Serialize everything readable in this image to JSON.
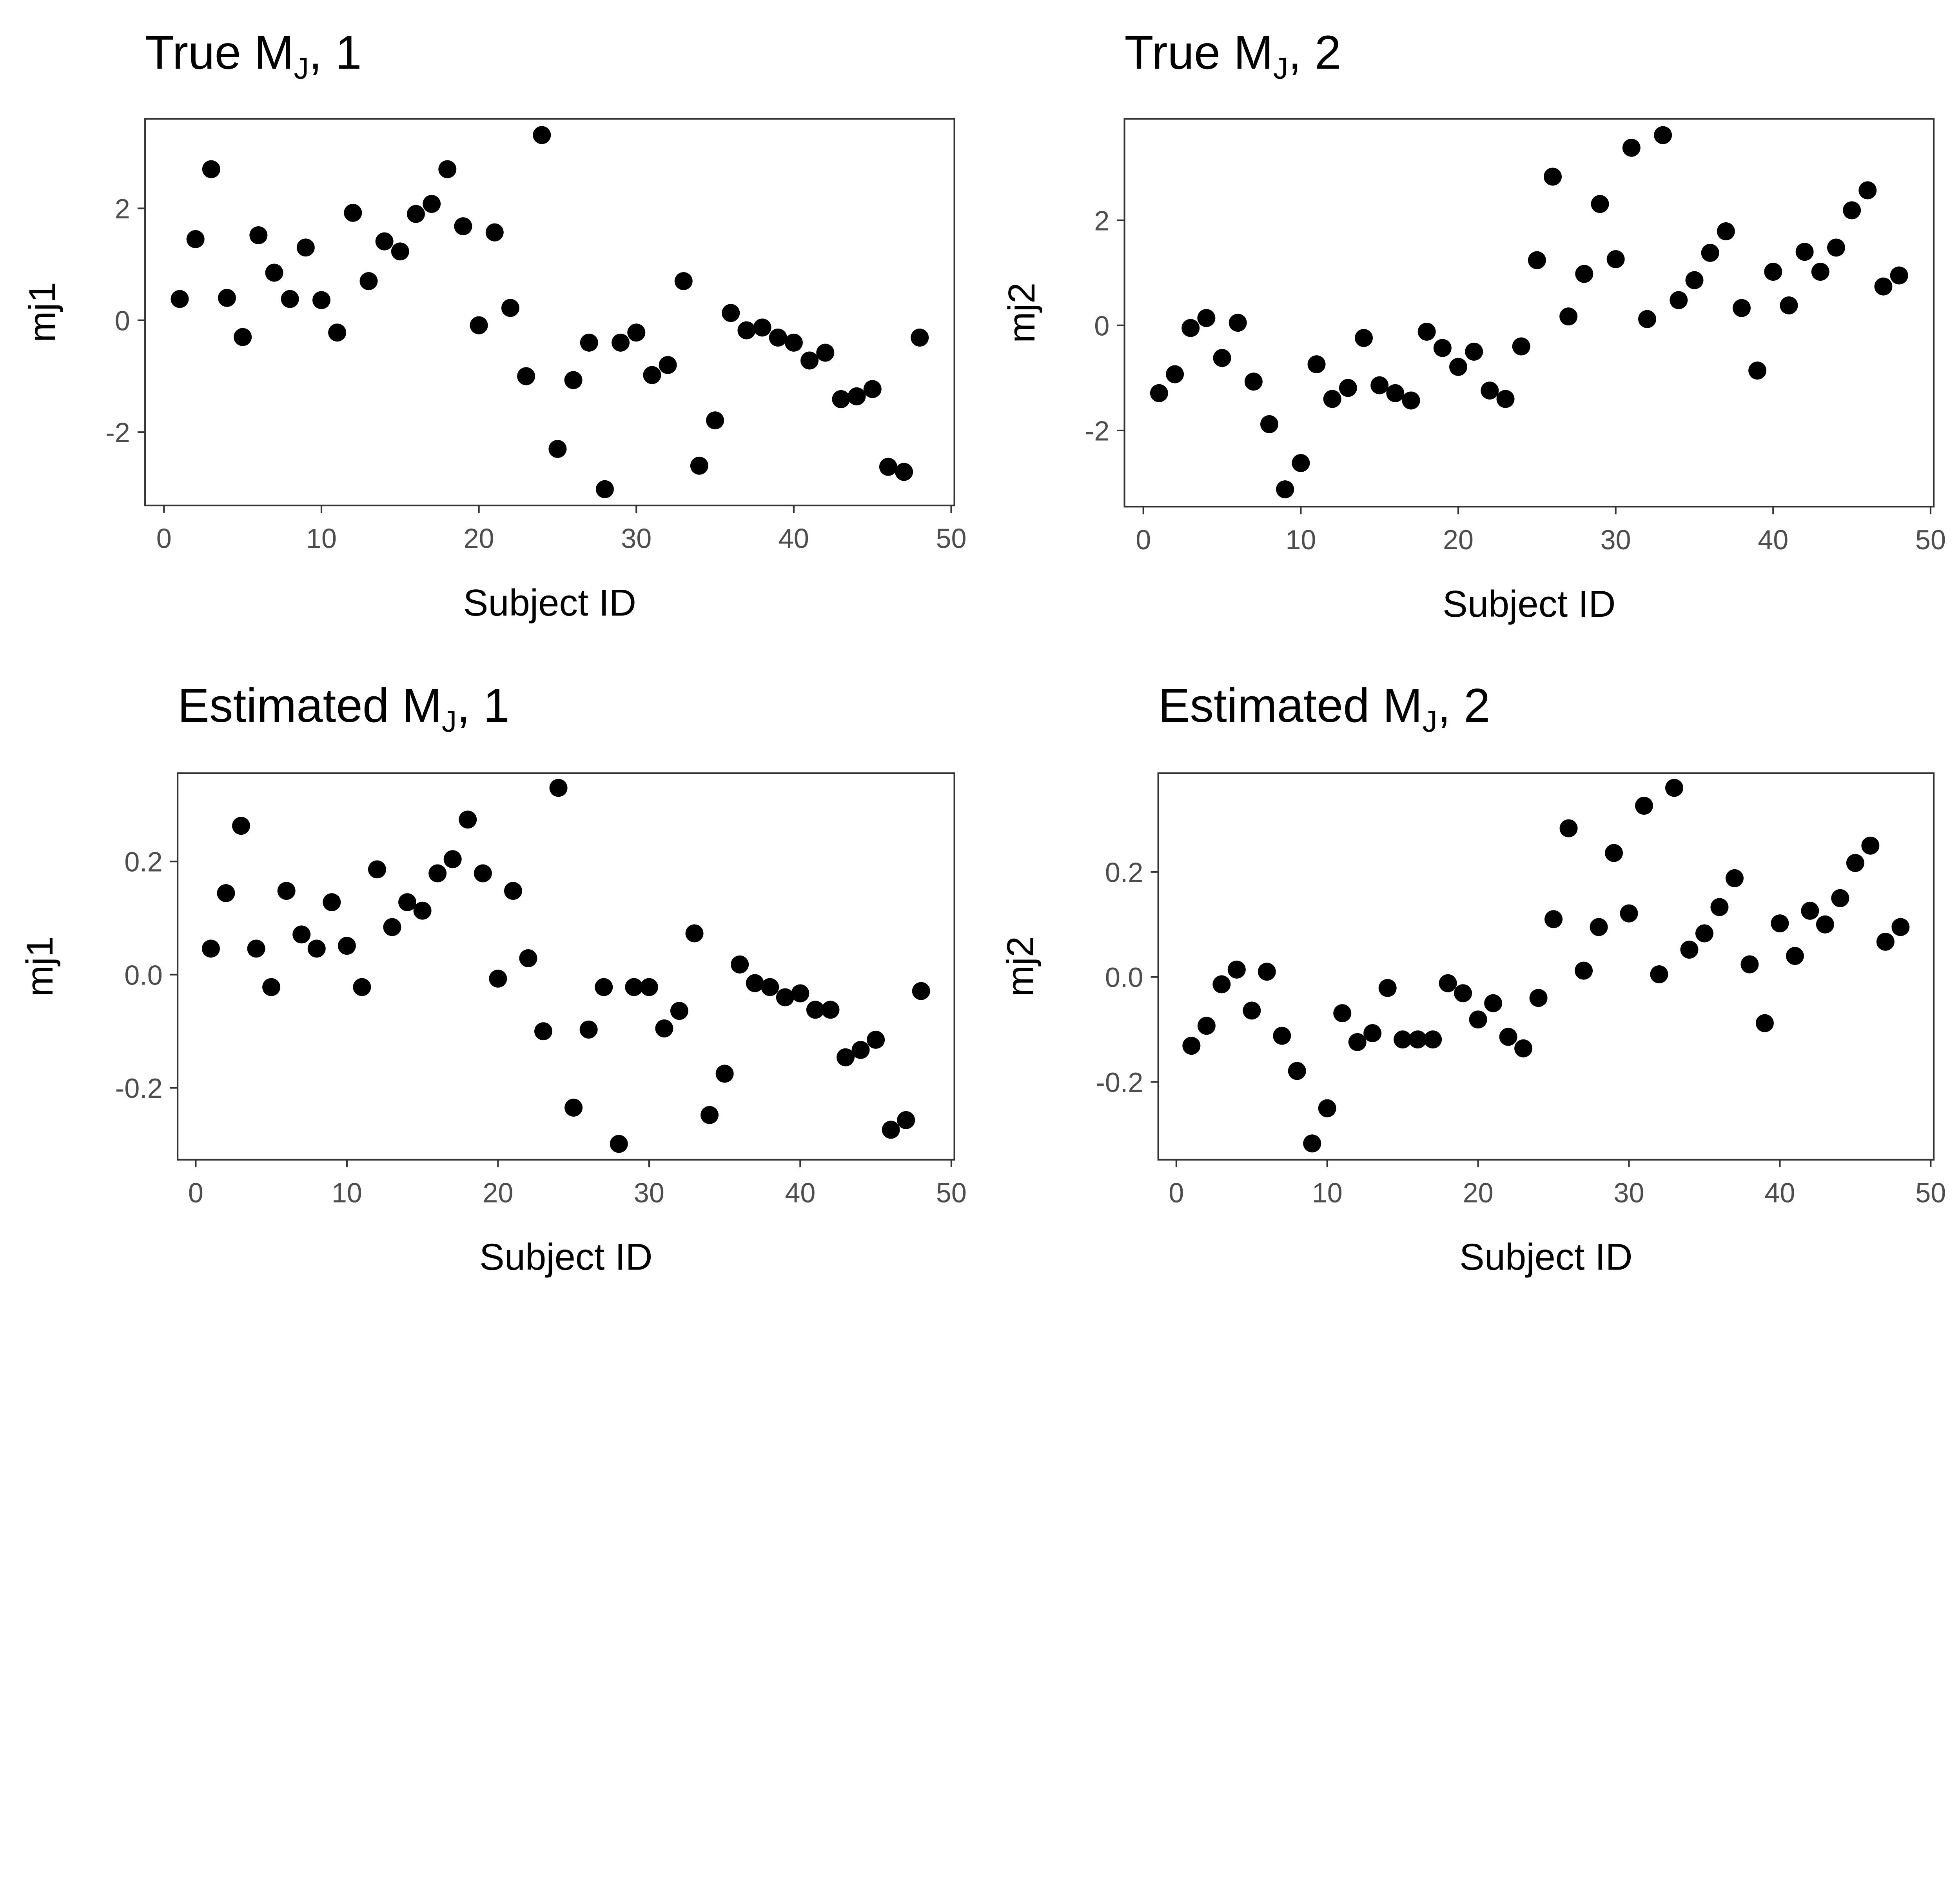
{
  "chart_data": [
    {
      "type": "scatter",
      "title": {
        "main": "True M",
        "sub": "J",
        "suffix": ", 1"
      },
      "xlabel": "Subject ID",
      "ylabel": "mj1",
      "xlim": [
        -1.2,
        50.2
      ],
      "ylim": [
        -3.31,
        3.6
      ],
      "xticks": [
        0,
        10,
        20,
        30,
        40,
        50
      ],
      "xtick_labels": [
        "0",
        "10",
        "20",
        "30",
        "40",
        "50"
      ],
      "yticks": [
        -2,
        0,
        2
      ],
      "ytick_labels": [
        "-2",
        "0",
        "2"
      ],
      "x": [
        1,
        2,
        3,
        4,
        5,
        6,
        7,
        8,
        9,
        10,
        11,
        12,
        13,
        14,
        15,
        16,
        17,
        18,
        19,
        20,
        21,
        22,
        23,
        24,
        25,
        26,
        27,
        28,
        29,
        30,
        31,
        32,
        33,
        34,
        35,
        36,
        37,
        38,
        39,
        40,
        41,
        42,
        43,
        44,
        45,
        46,
        47,
        48
      ],
      "y": [
        0.38,
        1.45,
        2.7,
        0.4,
        -0.3,
        1.52,
        0.85,
        0.38,
        1.3,
        0.36,
        -0.22,
        1.92,
        0.7,
        1.41,
        1.23,
        1.9,
        2.08,
        2.7,
        1.68,
        -0.09,
        1.57,
        0.22,
        -1.0,
        3.31,
        -2.3,
        -1.07,
        -0.4,
        -3.02,
        -0.4,
        -0.22,
        -0.98,
        -0.8,
        0.7,
        -2.6,
        -1.79,
        0.13,
        -0.18,
        -0.13,
        -0.31,
        -0.4,
        -0.72,
        -0.58,
        -1.41,
        -1.36,
        -1.23,
        -2.62,
        -2.71,
        -0.31
      ],
      "grid": false
    },
    {
      "type": "scatter",
      "title": {
        "main": "True M",
        "sub": "J",
        "suffix": ", 2"
      },
      "xlabel": "Subject ID",
      "ylabel": "mj2",
      "xlim": [
        -1.2,
        50.2
      ],
      "ylim": [
        -3.45,
        3.93
      ],
      "xticks": [
        0,
        10,
        20,
        30,
        40,
        50
      ],
      "xtick_labels": [
        "0",
        "10",
        "20",
        "30",
        "40",
        "50"
      ],
      "yticks": [
        -2,
        0,
        2
      ],
      "ytick_labels": [
        "-2",
        "0",
        "2"
      ],
      "x": [
        1,
        2,
        3,
        4,
        5,
        6,
        7,
        8,
        9,
        10,
        11,
        12,
        13,
        14,
        15,
        16,
        17,
        18,
        19,
        20,
        21,
        22,
        23,
        24,
        25,
        26,
        27,
        28,
        29,
        30,
        31,
        32,
        33,
        34,
        35,
        36,
        37,
        38,
        39,
        40,
        41,
        42,
        43,
        44,
        45,
        46,
        47,
        48
      ],
      "y": [
        -1.29,
        -0.93,
        -0.05,
        0.14,
        -0.62,
        0.05,
        -1.07,
        -1.88,
        -3.12,
        -2.62,
        -0.74,
        -1.4,
        -1.19,
        -0.24,
        -1.14,
        -1.29,
        -1.43,
        -0.12,
        -0.43,
        -0.79,
        -0.5,
        -1.24,
        -1.4,
        -0.4,
        1.24,
        2.83,
        0.17,
        0.98,
        2.31,
        1.26,
        3.38,
        0.12,
        3.62,
        0.48,
        0.86,
        1.38,
        1.79,
        0.33,
        -0.86,
        1.02,
        0.38,
        1.4,
        1.02,
        1.48,
        2.19,
        2.57,
        0.74,
        0.95
      ],
      "grid": false
    },
    {
      "type": "scatter",
      "title": {
        "main": "Estimated M",
        "sub": "J",
        "suffix": ", 1"
      },
      "xlabel": "Subject ID",
      "ylabel": "mj1",
      "xlim": [
        -1.2,
        50.2
      ],
      "ylim": [
        -0.327,
        0.356
      ],
      "xticks": [
        0,
        10,
        20,
        30,
        40,
        50
      ],
      "xtick_labels": [
        "0",
        "10",
        "20",
        "30",
        "40",
        "50"
      ],
      "yticks": [
        -0.2,
        0.0,
        0.2
      ],
      "ytick_labels": [
        "-0.2",
        "0.0",
        "0.2"
      ],
      "x": [
        1,
        2,
        3,
        4,
        5,
        6,
        7,
        8,
        9,
        10,
        11,
        12,
        13,
        14,
        15,
        16,
        17,
        18,
        19,
        20,
        21,
        22,
        23,
        24,
        25,
        26,
        27,
        28,
        29,
        30,
        31,
        32,
        33,
        34,
        35,
        36,
        37,
        38,
        39,
        40,
        41,
        42,
        43,
        44,
        45,
        46,
        47,
        48
      ],
      "y": [
        0.046,
        0.144,
        0.263,
        0.046,
        -0.022,
        0.148,
        0.071,
        0.046,
        0.128,
        0.051,
        -0.022,
        0.186,
        0.084,
        0.128,
        0.113,
        0.179,
        0.204,
        0.274,
        0.179,
        -0.007,
        0.148,
        0.029,
        -0.1,
        0.33,
        -0.235,
        -0.097,
        -0.022,
        -0.299,
        -0.022,
        -0.022,
        -0.095,
        -0.064,
        0.073,
        -0.248,
        -0.175,
        0.018,
        -0.015,
        -0.022,
        -0.04,
        -0.033,
        -0.062,
        -0.062,
        -0.146,
        -0.133,
        -0.115,
        -0.274,
        -0.257,
        -0.029
      ],
      "grid": false
    },
    {
      "type": "scatter",
      "title": {
        "main": "Estimated M",
        "sub": "J",
        "suffix": ", 2"
      },
      "xlabel": "Subject ID",
      "ylabel": "mj2",
      "xlim": [
        -1.2,
        50.2
      ],
      "ylim": [
        -0.348,
        0.388
      ],
      "xticks": [
        0,
        10,
        20,
        30,
        40,
        50
      ],
      "xtick_labels": [
        "0",
        "10",
        "20",
        "30",
        "40",
        "50"
      ],
      "yticks": [
        -0.2,
        0.0,
        0.2
      ],
      "ytick_labels": [
        "-0.2",
        "0.0",
        "0.2"
      ],
      "x": [
        1,
        2,
        3,
        4,
        5,
        6,
        7,
        8,
        9,
        10,
        11,
        12,
        13,
        14,
        15,
        16,
        17,
        18,
        19,
        20,
        21,
        22,
        23,
        24,
        25,
        26,
        27,
        28,
        29,
        30,
        31,
        32,
        33,
        34,
        35,
        36,
        37,
        38,
        39,
        40,
        41,
        42,
        43,
        44,
        45,
        46,
        47,
        48
      ],
      "y": [
        -0.131,
        -0.093,
        -0.014,
        0.014,
        -0.064,
        0.01,
        -0.112,
        -0.179,
        -0.317,
        -0.25,
        -0.069,
        -0.124,
        -0.107,
        -0.021,
        -0.119,
        -0.119,
        -0.119,
        -0.012,
        -0.031,
        -0.081,
        -0.05,
        -0.114,
        -0.136,
        -0.04,
        0.11,
        0.283,
        0.012,
        0.095,
        0.236,
        0.121,
        0.326,
        0.005,
        0.36,
        0.052,
        0.083,
        0.133,
        0.188,
        0.024,
        -0.088,
        0.102,
        0.04,
        0.126,
        0.1,
        0.15,
        0.217,
        0.25,
        0.067,
        0.095
      ],
      "grid": false
    }
  ],
  "colors": {
    "points": "#000000",
    "tick_text": "#4d4d4d",
    "frame": "#333333"
  }
}
